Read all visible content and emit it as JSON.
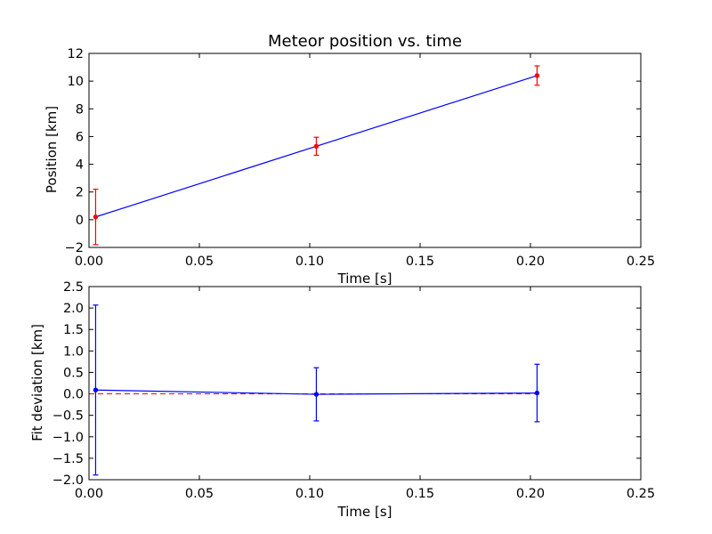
{
  "colors": {
    "background": "#ffffff",
    "axes": "#000000",
    "series_line": "#0000ff",
    "error_bars_top": "#ff0000",
    "error_bars_bottom": "#0000ff",
    "zero_reference": "#ff0000"
  },
  "chart_data": [
    {
      "type": "line",
      "title": "Meteor position vs. time",
      "xlabel": "Time [s]",
      "ylabel": "Position [km]",
      "xlim": [
        0.0,
        0.25
      ],
      "ylim": [
        -2,
        12
      ],
      "xticks": [
        0.0,
        0.05,
        0.1,
        0.15,
        0.2,
        0.25
      ],
      "xtick_labels": [
        "0.00",
        "0.05",
        "0.10",
        "0.15",
        "0.20",
        "0.25"
      ],
      "yticks": [
        -2,
        0,
        2,
        4,
        6,
        8,
        10,
        12
      ],
      "ytick_labels": [
        "−2",
        "0",
        "2",
        "4",
        "6",
        "8",
        "10",
        "12"
      ],
      "grid": false,
      "series": [
        {
          "x": [
            0.003,
            0.103,
            0.203
          ],
          "y": [
            0.2,
            5.3,
            10.4
          ],
          "error": [
            2.0,
            0.65,
            0.7
          ],
          "line_color": "#0000ff",
          "error_color": "#ff0000",
          "marker": "point"
        }
      ]
    },
    {
      "type": "line",
      "title": "",
      "xlabel": "Time [s]",
      "ylabel": "Fit deviation [km]",
      "xlim": [
        0.0,
        0.25
      ],
      "ylim": [
        -2.0,
        2.5
      ],
      "xticks": [
        0.0,
        0.05,
        0.1,
        0.15,
        0.2,
        0.25
      ],
      "xtick_labels": [
        "0.00",
        "0.05",
        "0.10",
        "0.15",
        "0.20",
        "0.25"
      ],
      "yticks": [
        -2.0,
        -1.5,
        -1.0,
        -0.5,
        0.0,
        0.5,
        1.0,
        1.5,
        2.0,
        2.5
      ],
      "ytick_labels": [
        "−2.0",
        "−1.5",
        "−1.0",
        "−0.5",
        "0.0",
        "0.5",
        "1.0",
        "1.5",
        "2.0",
        "2.5"
      ],
      "grid": false,
      "series": [
        {
          "x": [
            0.003,
            0.103,
            0.203
          ],
          "y": [
            0.09,
            -0.01,
            0.02
          ],
          "error": [
            1.98,
            0.62,
            0.67
          ],
          "line_color": "#0000ff",
          "error_color": "#0000ff",
          "marker": "point"
        }
      ],
      "reference_line": {
        "y": 0.0,
        "x_range": [
          0.0,
          0.203
        ],
        "style": "dashed",
        "color": "#ff0000"
      }
    }
  ]
}
